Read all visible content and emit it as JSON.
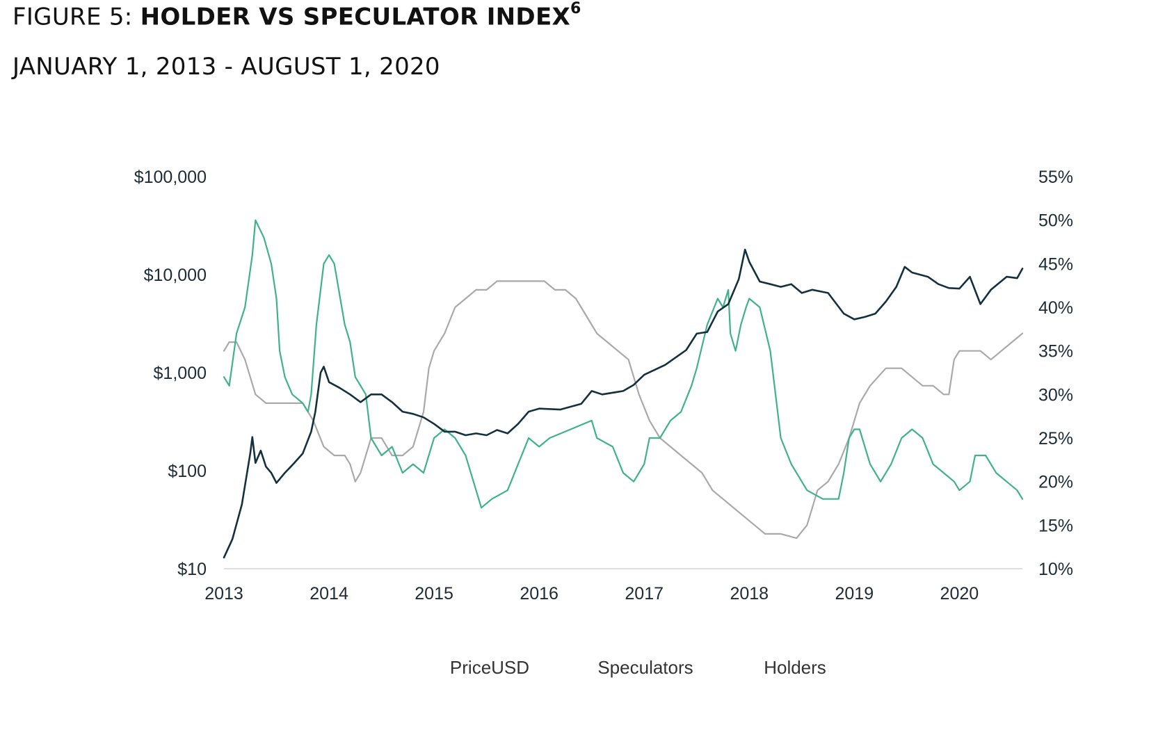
{
  "figure": {
    "label": "FIGURE 5:",
    "title": "HOLDER VS SPECULATOR INDEX",
    "footnote": "6",
    "date_range": "JANUARY 1, 2013 - AUGUST 1, 2020"
  },
  "chart_data": {
    "type": "line",
    "title": "HOLDER VS SPECULATOR INDEX",
    "subtitle": "JANUARY 1, 2013 - AUGUST 1, 2020",
    "x_ticks": [
      "2013",
      "2014",
      "2015",
      "2016",
      "2017",
      "2018",
      "2019",
      "2020"
    ],
    "x_range": [
      2013.0,
      2020.6
    ],
    "y_left": {
      "scale": "log",
      "range": [
        10,
        100000
      ],
      "ticks": [
        10,
        100,
        1000,
        10000,
        100000
      ],
      "tick_labels": [
        "$10",
        "$100",
        "$1,000",
        "$10,000",
        "$100,000"
      ]
    },
    "y_right": {
      "scale": "linear",
      "range": [
        10,
        55
      ],
      "ticks": [
        10,
        15,
        20,
        25,
        30,
        35,
        40,
        45,
        50,
        55
      ],
      "tick_labels": [
        "10%",
        "15%",
        "20%",
        "25%",
        "30%",
        "35%",
        "40%",
        "45%",
        "50%",
        "55%"
      ]
    },
    "legend_position": "bottom",
    "series": [
      {
        "name": "PriceUSD",
        "axis": "left",
        "color": "#13303f",
        "points": [
          [
            2013.0,
            13
          ],
          [
            2013.08,
            20
          ],
          [
            2013.17,
            45
          ],
          [
            2013.25,
            150
          ],
          [
            2013.27,
            220
          ],
          [
            2013.3,
            120
          ],
          [
            2013.35,
            160
          ],
          [
            2013.4,
            110
          ],
          [
            2013.45,
            95
          ],
          [
            2013.5,
            75
          ],
          [
            2013.58,
            95
          ],
          [
            2013.67,
            120
          ],
          [
            2013.75,
            150
          ],
          [
            2013.83,
            250
          ],
          [
            2013.87,
            400
          ],
          [
            2013.92,
            1000
          ],
          [
            2013.95,
            1150
          ],
          [
            2014.0,
            800
          ],
          [
            2014.1,
            700
          ],
          [
            2014.2,
            600
          ],
          [
            2014.3,
            500
          ],
          [
            2014.4,
            600
          ],
          [
            2014.5,
            600
          ],
          [
            2014.6,
            500
          ],
          [
            2014.7,
            400
          ],
          [
            2014.8,
            380
          ],
          [
            2014.9,
            350
          ],
          [
            2015.0,
            300
          ],
          [
            2015.1,
            250
          ],
          [
            2015.2,
            250
          ],
          [
            2015.3,
            230
          ],
          [
            2015.4,
            240
          ],
          [
            2015.5,
            230
          ],
          [
            2015.6,
            260
          ],
          [
            2015.7,
            240
          ],
          [
            2015.8,
            300
          ],
          [
            2015.9,
            400
          ],
          [
            2016.0,
            430
          ],
          [
            2016.2,
            420
          ],
          [
            2016.4,
            480
          ],
          [
            2016.5,
            650
          ],
          [
            2016.6,
            600
          ],
          [
            2016.8,
            650
          ],
          [
            2016.9,
            750
          ],
          [
            2017.0,
            950
          ],
          [
            2017.2,
            1200
          ],
          [
            2017.4,
            1700
          ],
          [
            2017.5,
            2500
          ],
          [
            2017.6,
            2600
          ],
          [
            2017.7,
            4200
          ],
          [
            2017.8,
            5000
          ],
          [
            2017.9,
            9000
          ],
          [
            2017.96,
            18000
          ],
          [
            2018.0,
            13500
          ],
          [
            2018.1,
            8500
          ],
          [
            2018.2,
            8000
          ],
          [
            2018.3,
            7500
          ],
          [
            2018.4,
            8000
          ],
          [
            2018.5,
            6500
          ],
          [
            2018.6,
            7000
          ],
          [
            2018.75,
            6500
          ],
          [
            2018.9,
            4000
          ],
          [
            2019.0,
            3500
          ],
          [
            2019.1,
            3700
          ],
          [
            2019.2,
            4000
          ],
          [
            2019.3,
            5300
          ],
          [
            2019.4,
            7500
          ],
          [
            2019.48,
            12000
          ],
          [
            2019.55,
            10500
          ],
          [
            2019.7,
            9500
          ],
          [
            2019.8,
            8000
          ],
          [
            2019.9,
            7300
          ],
          [
            2020.0,
            7200
          ],
          [
            2020.1,
            9500
          ],
          [
            2020.2,
            5000
          ],
          [
            2020.3,
            7000
          ],
          [
            2020.45,
            9500
          ],
          [
            2020.55,
            9200
          ],
          [
            2020.6,
            11500
          ]
        ]
      },
      {
        "name": "Speculators",
        "axis": "right",
        "color": "#3fb28b",
        "points": [
          [
            2013.0,
            32
          ],
          [
            2013.05,
            31
          ],
          [
            2013.12,
            37
          ],
          [
            2013.2,
            40
          ],
          [
            2013.27,
            46
          ],
          [
            2013.3,
            50
          ],
          [
            2013.38,
            48
          ],
          [
            2013.45,
            45
          ],
          [
            2013.5,
            41
          ],
          [
            2013.53,
            35
          ],
          [
            2013.58,
            32
          ],
          [
            2013.65,
            30
          ],
          [
            2013.75,
            29
          ],
          [
            2013.8,
            28
          ],
          [
            2013.83,
            30
          ],
          [
            2013.88,
            38
          ],
          [
            2013.95,
            45
          ],
          [
            2014.0,
            46
          ],
          [
            2014.05,
            45
          ],
          [
            2014.15,
            38
          ],
          [
            2014.2,
            36
          ],
          [
            2014.25,
            32
          ],
          [
            2014.3,
            31
          ],
          [
            2014.35,
            30
          ],
          [
            2014.4,
            25
          ],
          [
            2014.5,
            23
          ],
          [
            2014.6,
            24
          ],
          [
            2014.7,
            21
          ],
          [
            2014.8,
            22
          ],
          [
            2014.9,
            21
          ],
          [
            2015.0,
            25
          ],
          [
            2015.1,
            26
          ],
          [
            2015.2,
            25
          ],
          [
            2015.3,
            23
          ],
          [
            2015.4,
            19
          ],
          [
            2015.45,
            17
          ],
          [
            2015.55,
            18
          ],
          [
            2015.7,
            19
          ],
          [
            2015.8,
            22
          ],
          [
            2015.9,
            25
          ],
          [
            2016.0,
            24
          ],
          [
            2016.1,
            25
          ],
          [
            2016.3,
            26
          ],
          [
            2016.5,
            27
          ],
          [
            2016.55,
            25
          ],
          [
            2016.7,
            24
          ],
          [
            2016.8,
            21
          ],
          [
            2016.9,
            20
          ],
          [
            2017.0,
            22
          ],
          [
            2017.05,
            25
          ],
          [
            2017.15,
            25
          ],
          [
            2017.25,
            27
          ],
          [
            2017.35,
            28
          ],
          [
            2017.45,
            31
          ],
          [
            2017.5,
            33
          ],
          [
            2017.6,
            38
          ],
          [
            2017.7,
            41
          ],
          [
            2017.75,
            40
          ],
          [
            2017.8,
            42
          ],
          [
            2017.82,
            37
          ],
          [
            2017.87,
            35
          ],
          [
            2017.92,
            38
          ],
          [
            2017.97,
            40
          ],
          [
            2018.0,
            41
          ],
          [
            2018.1,
            40
          ],
          [
            2018.2,
            35
          ],
          [
            2018.3,
            25
          ],
          [
            2018.4,
            22
          ],
          [
            2018.55,
            19
          ],
          [
            2018.7,
            18
          ],
          [
            2018.85,
            18
          ],
          [
            2018.9,
            21
          ],
          [
            2018.95,
            25
          ],
          [
            2019.0,
            26
          ],
          [
            2019.05,
            26
          ],
          [
            2019.15,
            22
          ],
          [
            2019.25,
            20
          ],
          [
            2019.35,
            22
          ],
          [
            2019.45,
            25
          ],
          [
            2019.55,
            26
          ],
          [
            2019.65,
            25
          ],
          [
            2019.75,
            22
          ],
          [
            2019.85,
            21
          ],
          [
            2019.95,
            20
          ],
          [
            2020.0,
            19
          ],
          [
            2020.1,
            20
          ],
          [
            2020.15,
            23
          ],
          [
            2020.25,
            23
          ],
          [
            2020.35,
            21
          ],
          [
            2020.45,
            20
          ],
          [
            2020.55,
            19
          ],
          [
            2020.6,
            18
          ]
        ]
      },
      {
        "name": "Holders",
        "axis": "right",
        "color": "#a9a9a9",
        "points": [
          [
            2013.0,
            35
          ],
          [
            2013.05,
            36
          ],
          [
            2013.12,
            36
          ],
          [
            2013.2,
            34
          ],
          [
            2013.25,
            32
          ],
          [
            2013.3,
            30
          ],
          [
            2013.4,
            29
          ],
          [
            2013.5,
            29
          ],
          [
            2013.6,
            29
          ],
          [
            2013.75,
            29
          ],
          [
            2013.85,
            27
          ],
          [
            2013.95,
            24
          ],
          [
            2014.05,
            23
          ],
          [
            2014.15,
            23
          ],
          [
            2014.2,
            22
          ],
          [
            2014.25,
            20
          ],
          [
            2014.3,
            21
          ],
          [
            2014.4,
            25
          ],
          [
            2014.5,
            25
          ],
          [
            2014.6,
            23
          ],
          [
            2014.7,
            23
          ],
          [
            2014.8,
            24
          ],
          [
            2014.9,
            28
          ],
          [
            2014.95,
            33
          ],
          [
            2015.0,
            35
          ],
          [
            2015.1,
            37
          ],
          [
            2015.2,
            40
          ],
          [
            2015.3,
            41
          ],
          [
            2015.4,
            42
          ],
          [
            2015.5,
            42
          ],
          [
            2015.6,
            43
          ],
          [
            2015.7,
            43
          ],
          [
            2015.8,
            43
          ],
          [
            2015.95,
            43
          ],
          [
            2016.05,
            43
          ],
          [
            2016.15,
            42
          ],
          [
            2016.25,
            42
          ],
          [
            2016.35,
            41
          ],
          [
            2016.45,
            39
          ],
          [
            2016.55,
            37
          ],
          [
            2016.65,
            36
          ],
          [
            2016.75,
            35
          ],
          [
            2016.85,
            34
          ],
          [
            2016.95,
            30
          ],
          [
            2017.05,
            27
          ],
          [
            2017.15,
            25
          ],
          [
            2017.25,
            24
          ],
          [
            2017.35,
            23
          ],
          [
            2017.45,
            22
          ],
          [
            2017.55,
            21
          ],
          [
            2017.65,
            19
          ],
          [
            2017.75,
            18
          ],
          [
            2017.85,
            17
          ],
          [
            2017.95,
            16
          ],
          [
            2018.05,
            15
          ],
          [
            2018.15,
            14
          ],
          [
            2018.3,
            14
          ],
          [
            2018.45,
            13.5
          ],
          [
            2018.55,
            15
          ],
          [
            2018.6,
            17
          ],
          [
            2018.65,
            19
          ],
          [
            2018.75,
            20
          ],
          [
            2018.85,
            22
          ],
          [
            2018.95,
            25
          ],
          [
            2019.05,
            29
          ],
          [
            2019.15,
            31
          ],
          [
            2019.3,
            33
          ],
          [
            2019.45,
            33
          ],
          [
            2019.55,
            32
          ],
          [
            2019.65,
            31
          ],
          [
            2019.75,
            31
          ],
          [
            2019.85,
            30
          ],
          [
            2019.9,
            30
          ],
          [
            2019.95,
            34
          ],
          [
            2020.0,
            35
          ],
          [
            2020.1,
            35
          ],
          [
            2020.2,
            35
          ],
          [
            2020.3,
            34
          ],
          [
            2020.4,
            35
          ],
          [
            2020.5,
            36
          ],
          [
            2020.6,
            37
          ]
        ]
      }
    ]
  }
}
